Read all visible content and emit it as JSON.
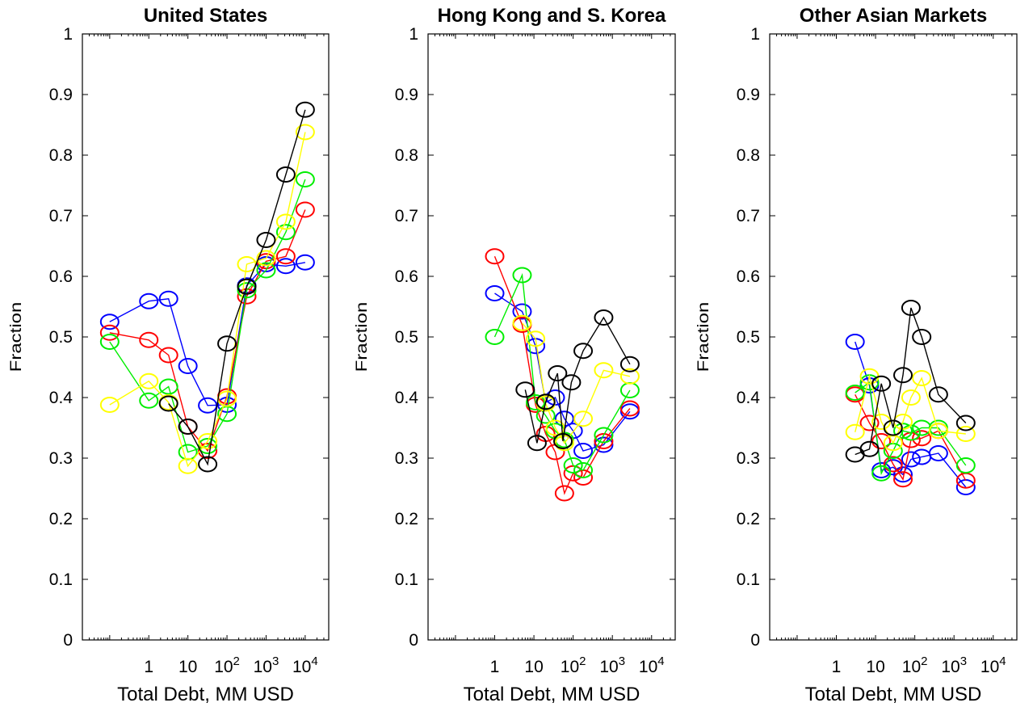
{
  "chart_data": [
    {
      "type": "line",
      "title": "United States",
      "xlabel": "Total Debt, MM USD",
      "ylabel": "Fraction",
      "xscale": "log",
      "xlim": [
        0.02,
        40000
      ],
      "ylim": [
        0,
        1
      ],
      "yticks": [
        "0",
        "0.1",
        "0.2",
        "0.3",
        "0.4",
        "0.5",
        "0.6",
        "0.7",
        "0.8",
        "0.9",
        "1"
      ],
      "xticks": [
        {
          "value": 1,
          "label": "1"
        },
        {
          "value": 10,
          "label": "10"
        },
        {
          "value": 100,
          "base": "10",
          "exp": "2"
        },
        {
          "value": 1000,
          "base": "10",
          "exp": "3"
        },
        {
          "value": 10000,
          "base": "10",
          "exp": "4"
        }
      ],
      "series": [
        {
          "color": "#0000ff",
          "x": [
            0.1,
            1,
            3.2,
            10,
            32,
            100,
            320,
            1000,
            3200,
            10000
          ],
          "y": [
            0.525,
            0.559,
            0.563,
            0.452,
            0.387,
            0.388,
            0.585,
            0.62,
            0.617,
            0.623
          ]
        },
        {
          "color": "#ff0000",
          "x": [
            0.1,
            1,
            3.2,
            10,
            32,
            100,
            320,
            1000,
            3200,
            10000
          ],
          "y": [
            0.507,
            0.495,
            0.47,
            0.352,
            0.312,
            0.402,
            0.567,
            0.625,
            0.633,
            0.71
          ]
        },
        {
          "color": "#00ee00",
          "x": [
            0.1,
            1,
            3.2,
            10,
            32,
            100,
            320,
            1000,
            3200,
            10000
          ],
          "y": [
            0.492,
            0.395,
            0.418,
            0.31,
            0.32,
            0.373,
            0.577,
            0.61,
            0.673,
            0.76
          ]
        },
        {
          "color": "#ffff00",
          "x": [
            0.1,
            1,
            3.2,
            10,
            32,
            100,
            320,
            1000,
            3200,
            10000
          ],
          "y": [
            0.388,
            0.427,
            0.392,
            0.287,
            0.328,
            0.398,
            0.62,
            0.63,
            0.69,
            0.838
          ]
        },
        {
          "color": "#000000",
          "x": [
            3.2,
            10,
            32,
            100,
            320,
            1000,
            3200,
            10000
          ],
          "y": [
            0.39,
            0.352,
            0.29,
            0.489,
            0.583,
            0.66,
            0.768,
            0.875
          ]
        }
      ]
    },
    {
      "type": "line",
      "title": "Hong Kong and S. Korea",
      "xlabel": "Total Debt, MM USD",
      "ylabel": "Fraction",
      "xscale": "log",
      "xlim": [
        0.02,
        40000
      ],
      "ylim": [
        0,
        1
      ],
      "yticks": [
        "0",
        "0.1",
        "0.2",
        "0.3",
        "0.4",
        "0.5",
        "0.6",
        "0.7",
        "0.8",
        "0.9",
        "1"
      ],
      "xticks": [
        {
          "value": 1,
          "label": "1"
        },
        {
          "value": 10,
          "label": "10"
        },
        {
          "value": 100,
          "base": "10",
          "exp": "2"
        },
        {
          "value": 1000,
          "base": "10",
          "exp": "3"
        },
        {
          "value": 10000,
          "base": "10",
          "exp": "4"
        }
      ],
      "series": [
        {
          "color": "#0000ff",
          "x": [
            1,
            5,
            11,
            20,
            35,
            60,
            100,
            180,
            600,
            2800
          ],
          "y": [
            0.572,
            0.542,
            0.485,
            0.392,
            0.4,
            0.365,
            0.345,
            0.312,
            0.322,
            0.377
          ]
        },
        {
          "color": "#ff0000",
          "x": [
            1,
            5,
            11,
            20,
            35,
            60,
            100,
            180,
            600,
            2800
          ],
          "y": [
            0.633,
            0.52,
            0.388,
            0.34,
            0.31,
            0.242,
            0.275,
            0.268,
            0.328,
            0.382
          ]
        },
        {
          "color": "#00ee00",
          "x": [
            1,
            5,
            11,
            20,
            35,
            60,
            100,
            180,
            600,
            2800
          ],
          "y": [
            0.5,
            0.602,
            0.392,
            0.37,
            0.345,
            0.33,
            0.288,
            0.28,
            0.338,
            0.412
          ]
        },
        {
          "color": "#ffff00",
          "x": [
            5,
            11,
            20,
            35,
            60,
            180,
            600,
            2800
          ],
          "y": [
            0.523,
            0.497,
            0.39,
            0.35,
            0.325,
            0.365,
            0.445,
            0.435
          ]
        },
        {
          "color": "#000000",
          "x": [
            6,
            12,
            20,
            40,
            55,
            90,
            180,
            600,
            2800
          ],
          "y": [
            0.413,
            0.325,
            0.393,
            0.44,
            0.328,
            0.425,
            0.477,
            0.532,
            0.455
          ]
        }
      ]
    },
    {
      "type": "line",
      "title": "Other Asian Markets",
      "xlabel": "Total Debt, MM USD",
      "ylabel": "Fraction",
      "xscale": "log",
      "xlim": [
        0.02,
        40000
      ],
      "ylim": [
        0,
        1
      ],
      "yticks": [
        "0",
        "0.1",
        "0.2",
        "0.3",
        "0.4",
        "0.5",
        "0.6",
        "0.7",
        "0.8",
        "0.9",
        "1"
      ],
      "xticks": [
        {
          "value": 1,
          "label": "1"
        },
        {
          "value": 10,
          "label": "10"
        },
        {
          "value": 100,
          "base": "10",
          "exp": "2"
        },
        {
          "value": 1000,
          "base": "10",
          "exp": "3"
        },
        {
          "value": 10000,
          "base": "10",
          "exp": "4"
        }
      ],
      "series": [
        {
          "color": "#0000ff",
          "x": [
            3,
            7,
            14,
            28,
            50,
            80,
            150,
            400,
            2000
          ],
          "y": [
            0.492,
            0.42,
            0.28,
            0.285,
            0.273,
            0.298,
            0.302,
            0.308,
            0.252
          ]
        },
        {
          "color": "#ff0000",
          "x": [
            3,
            7,
            14,
            28,
            50,
            80,
            150,
            400,
            2000
          ],
          "y": [
            0.405,
            0.358,
            0.328,
            0.29,
            0.265,
            0.33,
            0.333,
            0.345,
            0.263
          ]
        },
        {
          "color": "#00ee00",
          "x": [
            3,
            7,
            14,
            28,
            50,
            80,
            150,
            400,
            2000
          ],
          "y": [
            0.408,
            0.425,
            0.275,
            0.312,
            0.345,
            0.342,
            0.35,
            0.35,
            0.288
          ]
        },
        {
          "color": "#ffff00",
          "x": [
            3,
            7,
            14,
            28,
            50,
            80,
            150,
            400,
            2000
          ],
          "y": [
            0.343,
            0.435,
            0.36,
            0.325,
            0.36,
            0.4,
            0.432,
            0.345,
            0.34
          ]
        },
        {
          "color": "#000000",
          "x": [
            3,
            7,
            14,
            28,
            50,
            80,
            150,
            400,
            2000
          ],
          "y": [
            0.306,
            0.315,
            0.423,
            0.35,
            0.437,
            0.548,
            0.5,
            0.405,
            0.358
          ]
        }
      ]
    }
  ]
}
